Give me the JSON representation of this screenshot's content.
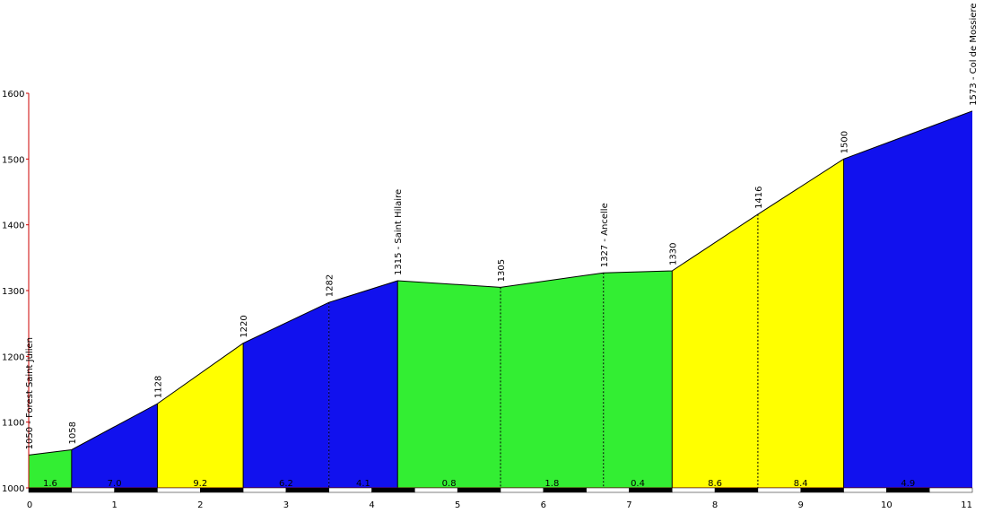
{
  "chart_data": {
    "type": "area",
    "title": "",
    "xlabel": "",
    "ylabel": "",
    "xlim": [
      0,
      11
    ],
    "ylim": [
      1000,
      1600
    ],
    "x_ticks": [
      "0",
      "1",
      "2",
      "3",
      "4",
      "5",
      "6",
      "7",
      "8",
      "9",
      "10",
      "11"
    ],
    "y_ticks": [
      "1000",
      "1100",
      "1200",
      "1300",
      "1400",
      "1500",
      "1600"
    ],
    "grid": false,
    "profile": [
      {
        "x": 0,
        "y": 1050,
        "label": "1050 - Forest Saint Julien"
      },
      {
        "x": 0.5,
        "y": 1058,
        "label": "1058"
      },
      {
        "x": 1.5,
        "y": 1128,
        "label": "1128"
      },
      {
        "x": 2.5,
        "y": 1220,
        "label": "1220"
      },
      {
        "x": 3.5,
        "y": 1282,
        "label": "1282"
      },
      {
        "x": 4.3,
        "y": 1315,
        "label": "1315 - Saint Hilaire"
      },
      {
        "x": 5.5,
        "y": 1305,
        "label": "1305"
      },
      {
        "x": 6.7,
        "y": 1327,
        "label": "1327 - Ancelle"
      },
      {
        "x": 7.5,
        "y": 1330,
        "label": "1330"
      },
      {
        "x": 8.5,
        "y": 1416,
        "label": "1416"
      },
      {
        "x": 9.5,
        "y": 1500,
        "label": "1500"
      },
      {
        "x": 11,
        "y": 1573,
        "label": "1573 - Col de Mossiere"
      }
    ],
    "segments": [
      {
        "x0": 0,
        "x1": 0.5,
        "grade": "1.6",
        "color": "#33ee33"
      },
      {
        "x0": 0.5,
        "x1": 1.5,
        "grade": "7.0",
        "color": "#1111ee"
      },
      {
        "x0": 1.5,
        "x1": 2.5,
        "grade": "9.2",
        "color": "#ffff00"
      },
      {
        "x0": 2.5,
        "x1": 3.5,
        "grade": "6.2",
        "color": "#1111ee"
      },
      {
        "x0": 3.5,
        "x1": 4.3,
        "grade": "4.1",
        "color": "#1111ee"
      },
      {
        "x0": 4.3,
        "x1": 5.5,
        "grade": "0.8",
        "color": "#33ee33"
      },
      {
        "x0": 5.5,
        "x1": 6.7,
        "grade": "1.8",
        "color": "#33ee33"
      },
      {
        "x0": 6.7,
        "x1": 7.5,
        "grade": "0.4",
        "color": "#33ee33"
      },
      {
        "x0": 7.5,
        "x1": 8.5,
        "grade": "8.6",
        "color": "#ffff00"
      },
      {
        "x0": 8.5,
        "x1": 9.5,
        "grade": "8.4",
        "color": "#ffff00"
      },
      {
        "x0": 9.5,
        "x1": 11,
        "grade": "4.9",
        "color": "#1111ee"
      }
    ],
    "colors": {
      "axis": "#cc0000",
      "outline": "#000000",
      "scale_dark": "#000000",
      "scale_light": "#ffffff"
    }
  }
}
